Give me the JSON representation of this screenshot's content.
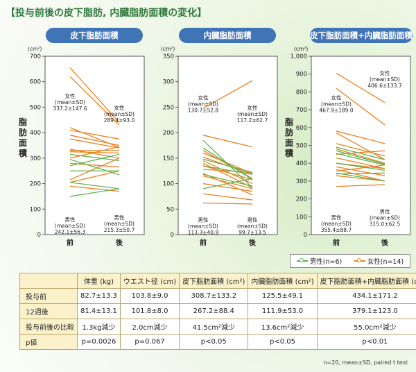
{
  "page_title": "【投与前後の皮下脂肪, 内臓脂肪面積の変化】",
  "legend": {
    "male": {
      "label": "男性(n=6)",
      "color": "#5fb34e"
    },
    "female": {
      "label": "女性(n=14)",
      "color": "#e8821e"
    }
  },
  "chart_data": [
    {
      "type": "line",
      "title": "皮下脂肪面積",
      "unit": "(cm²)",
      "ylabel": "脂肪面積",
      "categories": [
        "前",
        "後"
      ],
      "ylim": [
        0,
        700
      ],
      "yticks": [
        0,
        100,
        200,
        300,
        400,
        500,
        600,
        700
      ],
      "yticklabels": [
        "0",
        "100",
        "200",
        "300",
        "400",
        "500",
        "600",
        "700"
      ],
      "female_lines": [
        [
          655,
          440
        ],
        [
          620,
          430
        ],
        [
          420,
          342
        ],
        [
          410,
          375
        ],
        [
          390,
          350
        ],
        [
          375,
          340
        ],
        [
          335,
          300
        ],
        [
          330,
          330
        ],
        [
          325,
          320
        ],
        [
          300,
          345
        ],
        [
          280,
          265
        ],
        [
          215,
          300
        ],
        [
          205,
          250
        ],
        [
          190,
          170
        ]
      ],
      "male_lines": [
        [
          315,
          290
        ],
        [
          295,
          235
        ],
        [
          270,
          315
        ],
        [
          250,
          250
        ],
        [
          205,
          180
        ],
        [
          150,
          180
        ]
      ],
      "annotations": [
        {
          "lines": [
            "女性",
            "(mean±SD)",
            "337.2±147.6"
          ],
          "x": "前",
          "y": 537
        },
        {
          "lines": [
            "女性",
            "(mean±SD)",
            "289.4±93.0"
          ],
          "x": "後",
          "y": 490
        },
        {
          "lines": [
            "男性",
            "(mean±SD)",
            "242.1±56.3"
          ],
          "x": "前",
          "y": 52
        },
        {
          "lines": [
            "男性",
            "(mean±SD)",
            "215.3±50.7"
          ],
          "x": "後",
          "y": 60
        }
      ]
    },
    {
      "type": "line",
      "title": "内臓脂肪面積",
      "unit": "(cm²)",
      "ylabel": "脂肪面積",
      "categories": [
        "前",
        "後"
      ],
      "ylim": [
        0,
        350
      ],
      "yticks": [
        0,
        50,
        100,
        150,
        200,
        250,
        300,
        350
      ],
      "yticklabels": [
        "0",
        "50",
        "100",
        "150",
        "200",
        "250",
        "300",
        "350"
      ],
      "female_lines": [
        [
          248,
          302
        ],
        [
          195,
          172
        ],
        [
          165,
          110
        ],
        [
          160,
          120
        ],
        [
          152,
          118
        ],
        [
          145,
          100
        ],
        [
          140,
          92
        ],
        [
          135,
          108
        ],
        [
          128,
          122
        ],
        [
          120,
          78
        ],
        [
          115,
          90
        ],
        [
          100,
          85
        ],
        [
          80,
          68
        ],
        [
          62,
          60
        ]
      ],
      "male_lines": [
        [
          185,
          92
        ],
        [
          170,
          108
        ],
        [
          148,
          122
        ],
        [
          135,
          118
        ],
        [
          118,
          95
        ],
        [
          90,
          110
        ]
      ],
      "annotations": [
        {
          "lines": [
            "女性",
            "(mean±SD)",
            "130.7±52.8"
          ],
          "x": "前",
          "y": 265
        },
        {
          "lines": [
            "女性",
            "(mean±SD)",
            "117.2±62.7"
          ],
          "x": "後",
          "y": 245
        },
        {
          "lines": [
            "男性",
            "(mean±SD)",
            "113.3±40.9"
          ],
          "x": "前",
          "y": 25
        },
        {
          "lines": [
            "男性",
            "(mean±SD)",
            "99.7±13.5"
          ],
          "x": "後",
          "y": 25
        }
      ]
    },
    {
      "type": "line",
      "title": "皮下脂肪面積+内臓脂肪面積",
      "unit": "(cm²)",
      "ylabel": "脂肪面積",
      "categories": [
        "前",
        "後"
      ],
      "ylim": [
        0,
        1000
      ],
      "yticks": [
        0,
        100,
        200,
        300,
        400,
        500,
        600,
        700,
        800,
        900,
        1000
      ],
      "yticklabels": [
        "0",
        "100",
        "200",
        "300",
        "400",
        "500",
        "600",
        "700",
        "800",
        "900",
        "1,000"
      ],
      "female_lines": [
        [
          905,
          740
        ],
        [
          820,
          615
        ],
        [
          580,
          510
        ],
        [
          570,
          420
        ],
        [
          510,
          440
        ],
        [
          480,
          400
        ],
        [
          450,
          470
        ],
        [
          430,
          370
        ],
        [
          400,
          370
        ],
        [
          380,
          330
        ],
        [
          365,
          300
        ],
        [
          355,
          390
        ],
        [
          330,
          300
        ],
        [
          270,
          280
        ]
      ],
      "male_lines": [
        [
          490,
          420
        ],
        [
          470,
          395
        ],
        [
          455,
          390
        ],
        [
          400,
          360
        ],
        [
          345,
          300
        ],
        [
          340,
          345
        ]
      ],
      "annotations": [
        {
          "lines": [
            "女性",
            "(mean±SD)",
            "467.9±189.0"
          ],
          "x": "前",
          "y": 757
        },
        {
          "lines": [
            "女性",
            "(mean±SD)",
            "406.6±133.7"
          ],
          "x": "後",
          "y": 895
        },
        {
          "lines": [
            "男性",
            "(mean±SD)",
            "355.4±88.7"
          ],
          "x": "前",
          "y": 85
        },
        {
          "lines": [
            "男性",
            "(mean±SD)",
            "315.0±62.5"
          ],
          "x": "後",
          "y": 118
        }
      ]
    }
  ],
  "table": {
    "headers": [
      "",
      "体重 (kg)",
      "ウエスト径 (cm)",
      "皮下脂肪面積 (cm²)",
      "内臓脂肪面積 (cm²)",
      "皮下脂肪面積+内臓脂肪面積 (cm²)"
    ],
    "rows": [
      [
        "投与前",
        "82.7±13.3",
        "103.8±9.0",
        "308.7±133.2",
        "125.5±49.1",
        "434.1±171.2"
      ],
      [
        "12週後",
        "81.4±13.1",
        "101.8±8.0",
        "267.2±88.4",
        "111.9±53.0",
        "379.1±123.0"
      ],
      [
        "投与前後の比較",
        "1.3kg減少",
        "2.0cm減少",
        "41.5cm²減少",
        "13.6cm²減少",
        "55.0cm²減少"
      ],
      [
        "p値",
        "p=0.0026",
        "p=0.067",
        "p<0.05",
        "p<0.05",
        "p<0.01"
      ]
    ]
  },
  "footnote": "n=20, mean±SD, paired t test"
}
